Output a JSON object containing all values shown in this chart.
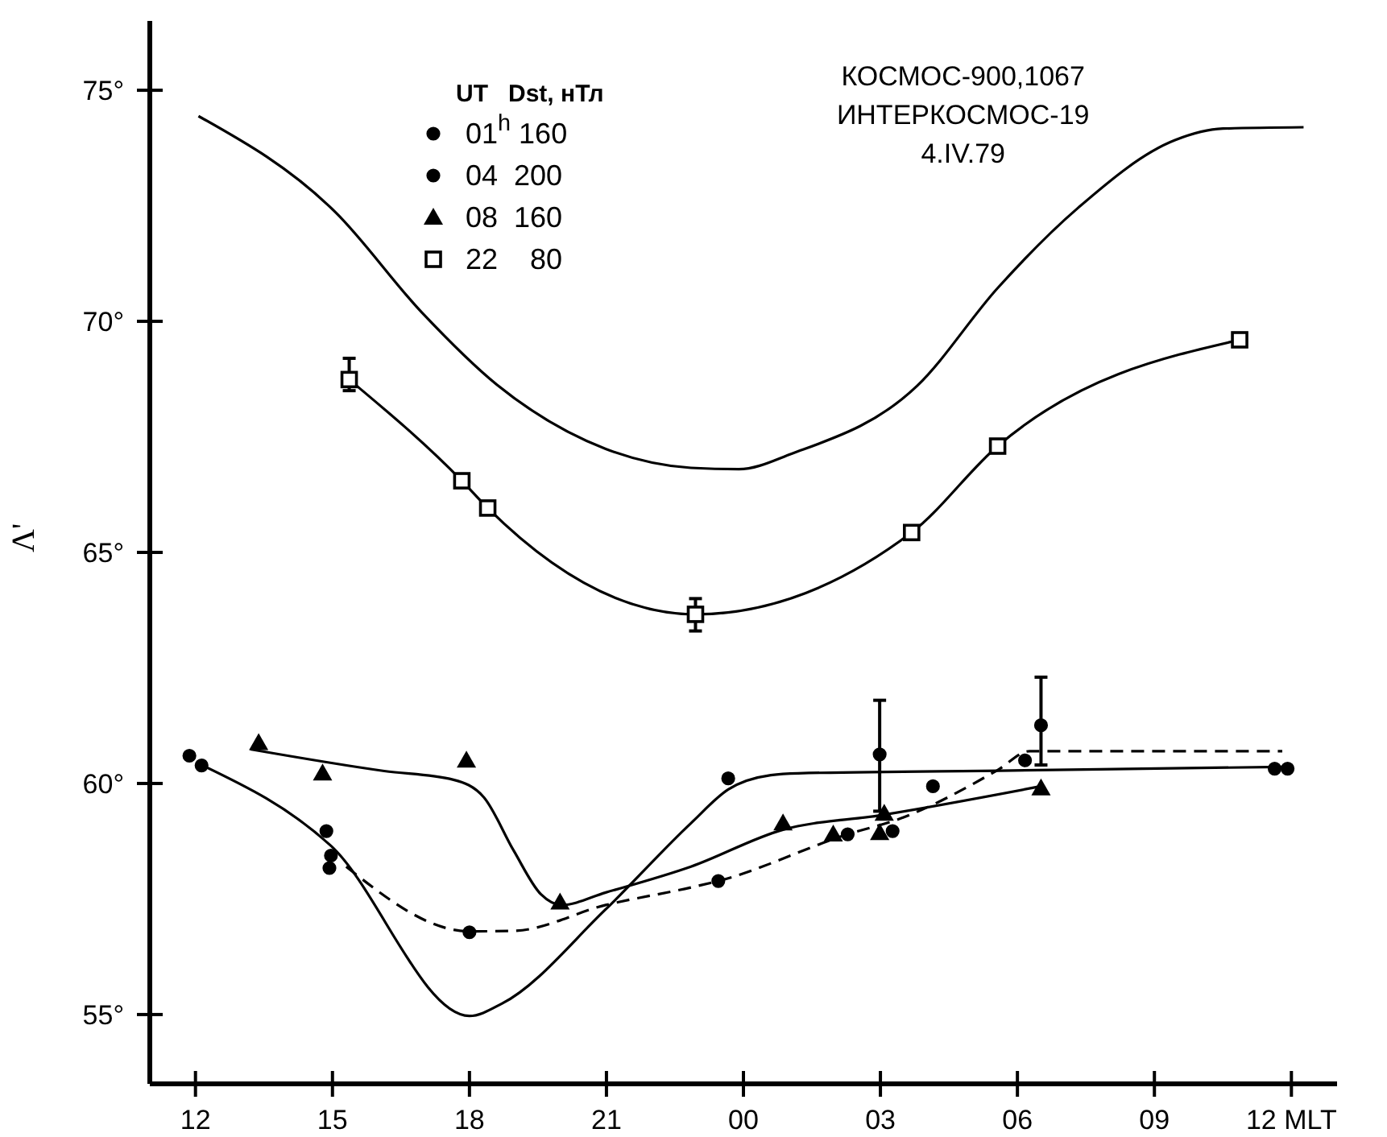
{
  "chart_data": {
    "type": "scatter",
    "ylabel": "Λ'",
    "legend_title": "UT   Dst, нТл",
    "legend": "top left",
    "annotations": [
      "КОСМОС-900,1067",
      "ИНТЕРКОСМОС-19",
      "4.IV.79"
    ],
    "xlim": [
      "--04-04T11:00",
      "--04-05T13:00"
    ],
    "xticks": [
      {
        "value": "--04-04T12:00",
        "label": "12"
      },
      {
        "value": "--04-04T15:00",
        "label": "15"
      },
      {
        "value": "--04-04T18:00",
        "label": "18"
      },
      {
        "value": "--04-04T21:00",
        "label": "21"
      },
      {
        "value": "--04-05T00:00",
        "label": "00"
      },
      {
        "value": "--04-05T03:00",
        "label": "03"
      },
      {
        "value": "--04-05T06:00",
        "label": "06"
      },
      {
        "value": "--04-05T09:00",
        "label": "09"
      },
      {
        "value": "--04-05T12:00",
        "label": "12 MLT"
      }
    ],
    "ylim": [
      53.5,
      76.5
    ],
    "yticks": [
      {
        "value": 55,
        "label": "55°"
      },
      {
        "value": 60,
        "label": "60°"
      },
      {
        "value": 65,
        "label": "65°"
      },
      {
        "value": 70,
        "label": "70°"
      },
      {
        "value": 75,
        "label": "75°"
      }
    ],
    "series": [
      {
        "type": "line",
        "marker": "none",
        "line_style": "solid",
        "color": "#000000",
        "x": [
          "--04-04T12:04",
          "--04-04T15:04",
          "--04-04T16:57",
          "--04-04T18:36",
          "--04-04T20:59",
          "--04-04T22:51",
          "--04-04T23:54",
          "--04-05T01:04",
          "--04-05T03:48",
          "--04-05T05:34",
          "--04-05T07:20",
          "--04-05T09:27",
          "--04-05T10:30",
          "--04-05T12:16"
        ],
        "values": [
          74.44,
          72.36,
          70.2,
          68.63,
          67.24,
          66.83,
          66.8,
          67.14,
          68.6,
          70.72,
          72.46,
          73.92,
          74.17,
          74.2
        ]
      },
      {
        "name": "01$^{h}$ 160",
        "marker": "circle",
        "color": "#000000",
        "x": [
          "--04-04T11:52",
          "--04-04T14:52",
          "--04-04T14:56",
          "--04-04T23:40",
          "--04-05T02:59",
          "--04-05T04:09",
          "--04-05T06:10",
          "--04-05T11:55"
        ],
        "values": [
          60.6,
          58.97,
          58.17,
          60.11,
          60.63,
          59.94,
          60.5,
          60.32
        ],
        "errors": [
          null,
          null,
          null,
          null,
          [
            59.4,
            61.8
          ],
          null,
          null,
          null
        ]
      },
      {
        "type": "line",
        "marker": "none",
        "line_style": "solid",
        "color": "#000000",
        "x": [
          "--04-04T12:08",
          "--04-04T14:58",
          "--04-04T18:00",
          "--04-04T18:43",
          "--04-04T20:58",
          "--04-04T22:51",
          "--04-04T23:40",
          "--04-05T00:36",
          "--04-05T01:12",
          "--04-05T05:54",
          "--04-05T11:48"
        ],
        "values": [
          60.4,
          58.65,
          54.97,
          55.24,
          57.26,
          59.14,
          59.87,
          60.18,
          60.22,
          60.28,
          60.36
        ]
      },
      {
        "name": "04  200",
        "marker": "circle",
        "color": "#000000",
        "x": [
          "--04-04T12:08",
          "--04-04T14:58",
          "--04-04T18:00",
          "--04-04T23:27",
          "--04-05T02:17",
          "--04-05T03:16",
          "--04-05T06:31",
          "--04-05T11:38"
        ],
        "values": [
          60.39,
          58.44,
          56.78,
          57.89,
          58.9,
          58.97,
          61.26,
          60.32
        ],
        "errors": [
          null,
          null,
          null,
          null,
          null,
          null,
          [
            60.4,
            62.3
          ],
          null
        ]
      },
      {
        "type": "line",
        "marker": "none",
        "line_style": "dashed",
        "color": "#000000",
        "x": [
          "--04-04T15:18",
          "--04-04T18:00",
          "--04-04T18:58",
          "--04-04T20:59",
          "--04-04T22:51",
          "--04-04T23:27",
          "--04-05T02:17",
          "--04-05T03:26",
          "--04-05T05:34",
          "--04-05T06:16",
          "--04-05T11:48"
        ],
        "values": [
          58.2,
          56.8,
          56.81,
          57.37,
          57.75,
          57.89,
          58.9,
          59.24,
          60.29,
          60.7,
          60.7
        ]
      },
      {
        "name": "08  160",
        "marker": "triangle",
        "color": "#000000",
        "x": [
          "--04-04T13:23",
          "--04-04T14:47",
          "--04-04T17:56",
          "--04-04T19:59",
          "--04-05T00:52",
          "--04-05T01:58",
          "--04-05T02:59",
          "--04-05T03:05",
          "--04-05T06:31"
        ],
        "values": [
          60.88,
          60.22,
          60.5,
          57.43,
          59.14,
          58.9,
          58.93,
          59.35,
          59.9
        ]
      },
      {
        "type": "line",
        "marker": "none",
        "line_style": "solid",
        "color": "#000000",
        "x": [
          "--04-04T13:12",
          "--04-04T16:08",
          "--04-04T17:39",
          "--04-04T18:19",
          "--04-04T18:58",
          "--04-04T19:34",
          "--04-04T20:01",
          "--04-04T20:59",
          "--04-04T22:51",
          "--04-05T00:52",
          "--04-05T02:59",
          "--04-05T06:31"
        ],
        "values": [
          60.74,
          60.27,
          60.08,
          59.7,
          58.55,
          57.6,
          57.37,
          57.64,
          58.2,
          59.0,
          59.31,
          59.94
        ]
      },
      {
        "name": "22    80",
        "type": "line",
        "marker": "square",
        "line_style": "solid",
        "color": "#000000",
        "x": [
          "--04-04T15:22",
          "--04-04T17:50",
          "--04-04T18:24",
          "--04-04T22:57",
          "--04-05T03:41",
          "--04-05T05:34",
          "--04-05T10:52"
        ],
        "values": [
          68.74,
          66.55,
          65.96,
          63.66,
          65.43,
          67.3,
          69.6
        ],
        "errors": [
          [
            68.5,
            69.2
          ],
          null,
          null,
          [
            63.3,
            64.0
          ],
          null,
          null,
          null
        ]
      }
    ]
  }
}
